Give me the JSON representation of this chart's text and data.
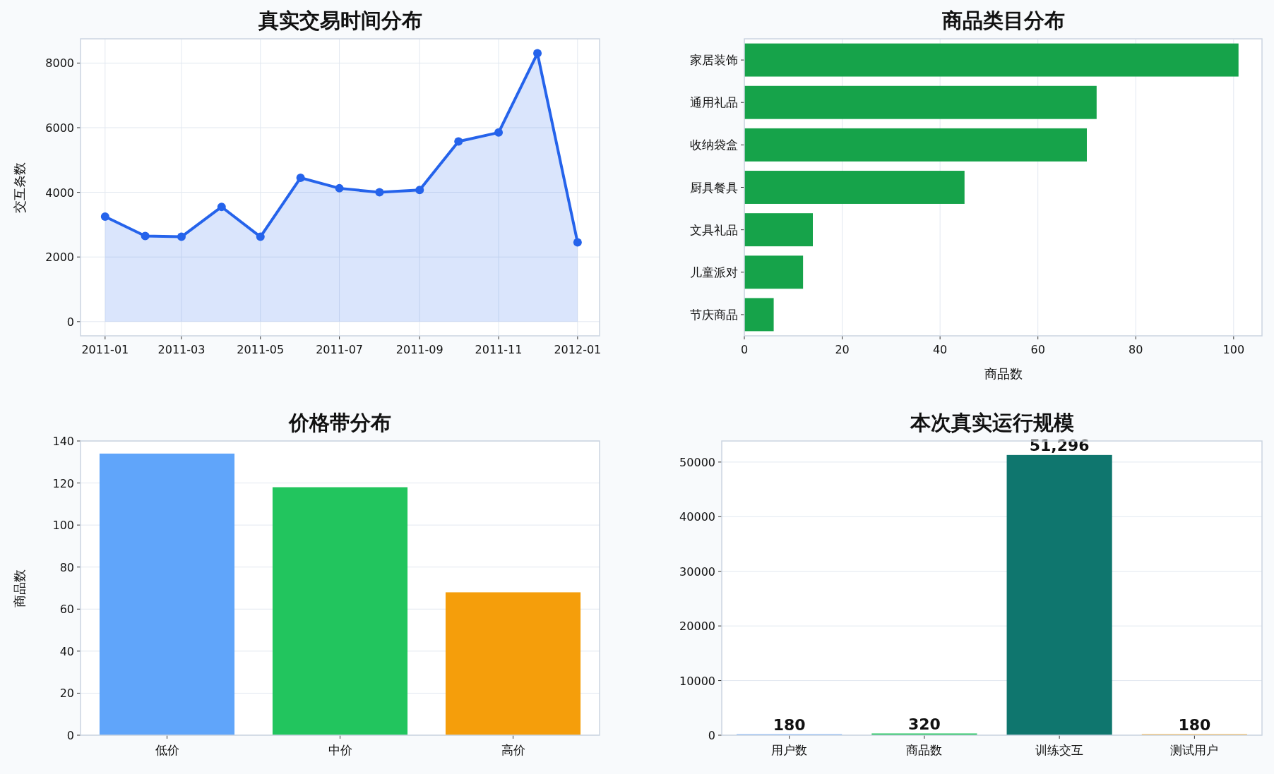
{
  "chart_data": [
    {
      "type": "area",
      "title": "真实交易时间分布",
      "ylabel": "交互条数",
      "color": "#2563eb",
      "marker": "circle",
      "grid": true,
      "x": [
        "2011-01",
        "2011-02",
        "2011-03",
        "2011-04",
        "2011-05",
        "2011-06",
        "2011-07",
        "2011-08",
        "2011-09",
        "2011-10",
        "2011-11",
        "2011-12",
        "2012-01"
      ],
      "values": [
        3250,
        2650,
        2625,
        3550,
        2625,
        4450,
        4125,
        4000,
        4075,
        5575,
        5850,
        8300,
        2450
      ],
      "xlim": [
        "2010-12-13",
        "2012-01-18"
      ],
      "xticks": [
        "2011-01",
        "2011-03",
        "2011-05",
        "2011-07",
        "2011-09",
        "2011-11",
        "2012-01"
      ],
      "ylim": [
        -440,
        8750
      ],
      "yticks": [
        0,
        2000,
        4000,
        6000,
        8000
      ]
    },
    {
      "type": "bar",
      "orientation": "horizontal",
      "title": "商品类目分布",
      "xlabel": "商品数",
      "color": "#16a34a",
      "grid": true,
      "categories": [
        "家居装饰",
        "通用礼品",
        "收纳袋盒",
        "厨具餐具",
        "文具礼品",
        "儿童派对",
        "节庆商品"
      ],
      "values": [
        101,
        72,
        70,
        45,
        14,
        12,
        6
      ],
      "xlim": [
        0,
        105.8
      ],
      "xticks": [
        0,
        20,
        40,
        60,
        80,
        100
      ]
    },
    {
      "type": "bar",
      "title": "价格带分布",
      "ylabel": "商品数",
      "grid": "y",
      "categories": [
        "低价",
        "中价",
        "高价"
      ],
      "values": [
        134,
        118,
        68
      ],
      "colors": [
        "#60a5fa",
        "#22c55e",
        "#f59e0b"
      ],
      "ylim": [
        0,
        140
      ],
      "yticks": [
        0,
        20,
        40,
        60,
        80,
        100,
        120,
        140
      ]
    },
    {
      "type": "bar",
      "title": "本次真实运行规模",
      "grid": "y",
      "categories": [
        "用户数",
        "商品数",
        "训练交互",
        "测试用户"
      ],
      "values": [
        180,
        320,
        51296,
        180
      ],
      "colors": [
        "#60a5fa",
        "#22c55e",
        "#0f766e",
        "#f59e0b"
      ],
      "value_labels": [
        "180",
        "320",
        "51,296",
        "180"
      ],
      "ylim": [
        0,
        53860
      ],
      "yticks": [
        0,
        10000,
        20000,
        30000,
        40000,
        50000
      ]
    }
  ]
}
